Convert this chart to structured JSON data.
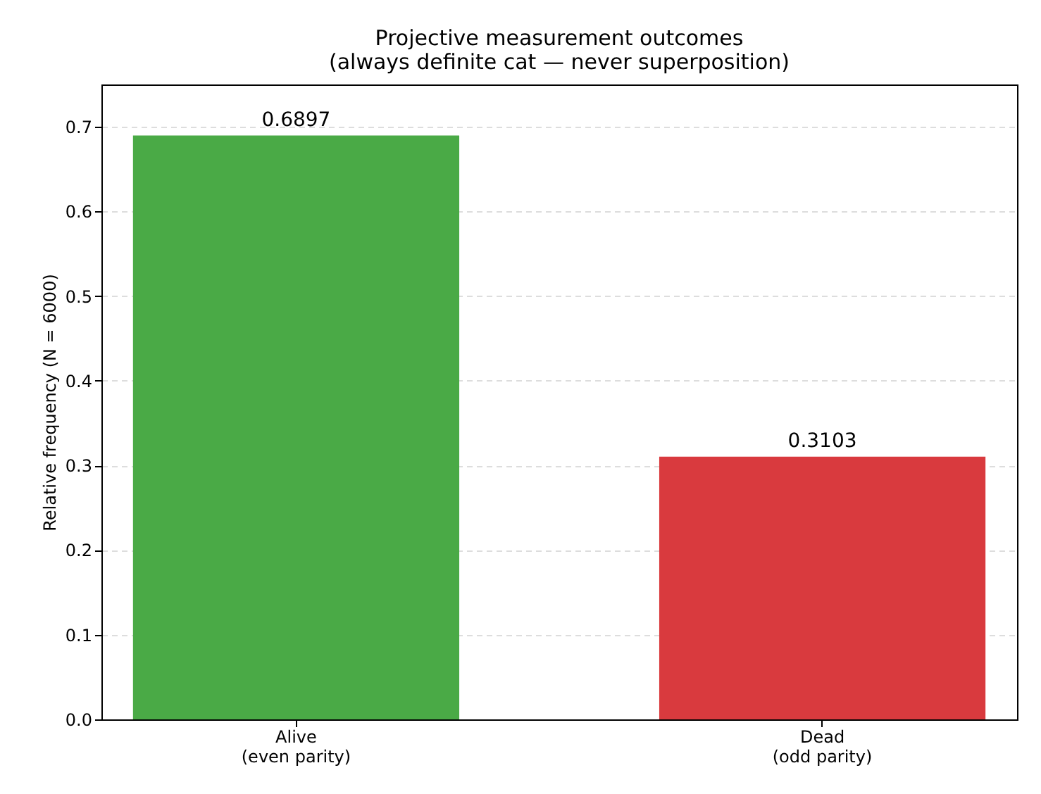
{
  "chart_data": {
    "type": "bar",
    "title": "Projective measurement outcomes\n(always definite cat — never superposition)",
    "ylabel": "Relative frequency (N = 6000)",
    "categories": [
      "Alive\n(even parity)",
      "Dead\n(odd parity)"
    ],
    "values": [
      0.6897,
      0.3103
    ],
    "colors": [
      "#4aaa46",
      "#d93a3e"
    ],
    "ylim": [
      0,
      0.75
    ],
    "yticks": [
      {
        "value": 0,
        "label": "0.0"
      },
      0.1,
      0.2,
      0.3,
      0.4,
      0.5,
      0.6,
      0.7
    ],
    "grid": "y",
    "data_labels": true
  }
}
